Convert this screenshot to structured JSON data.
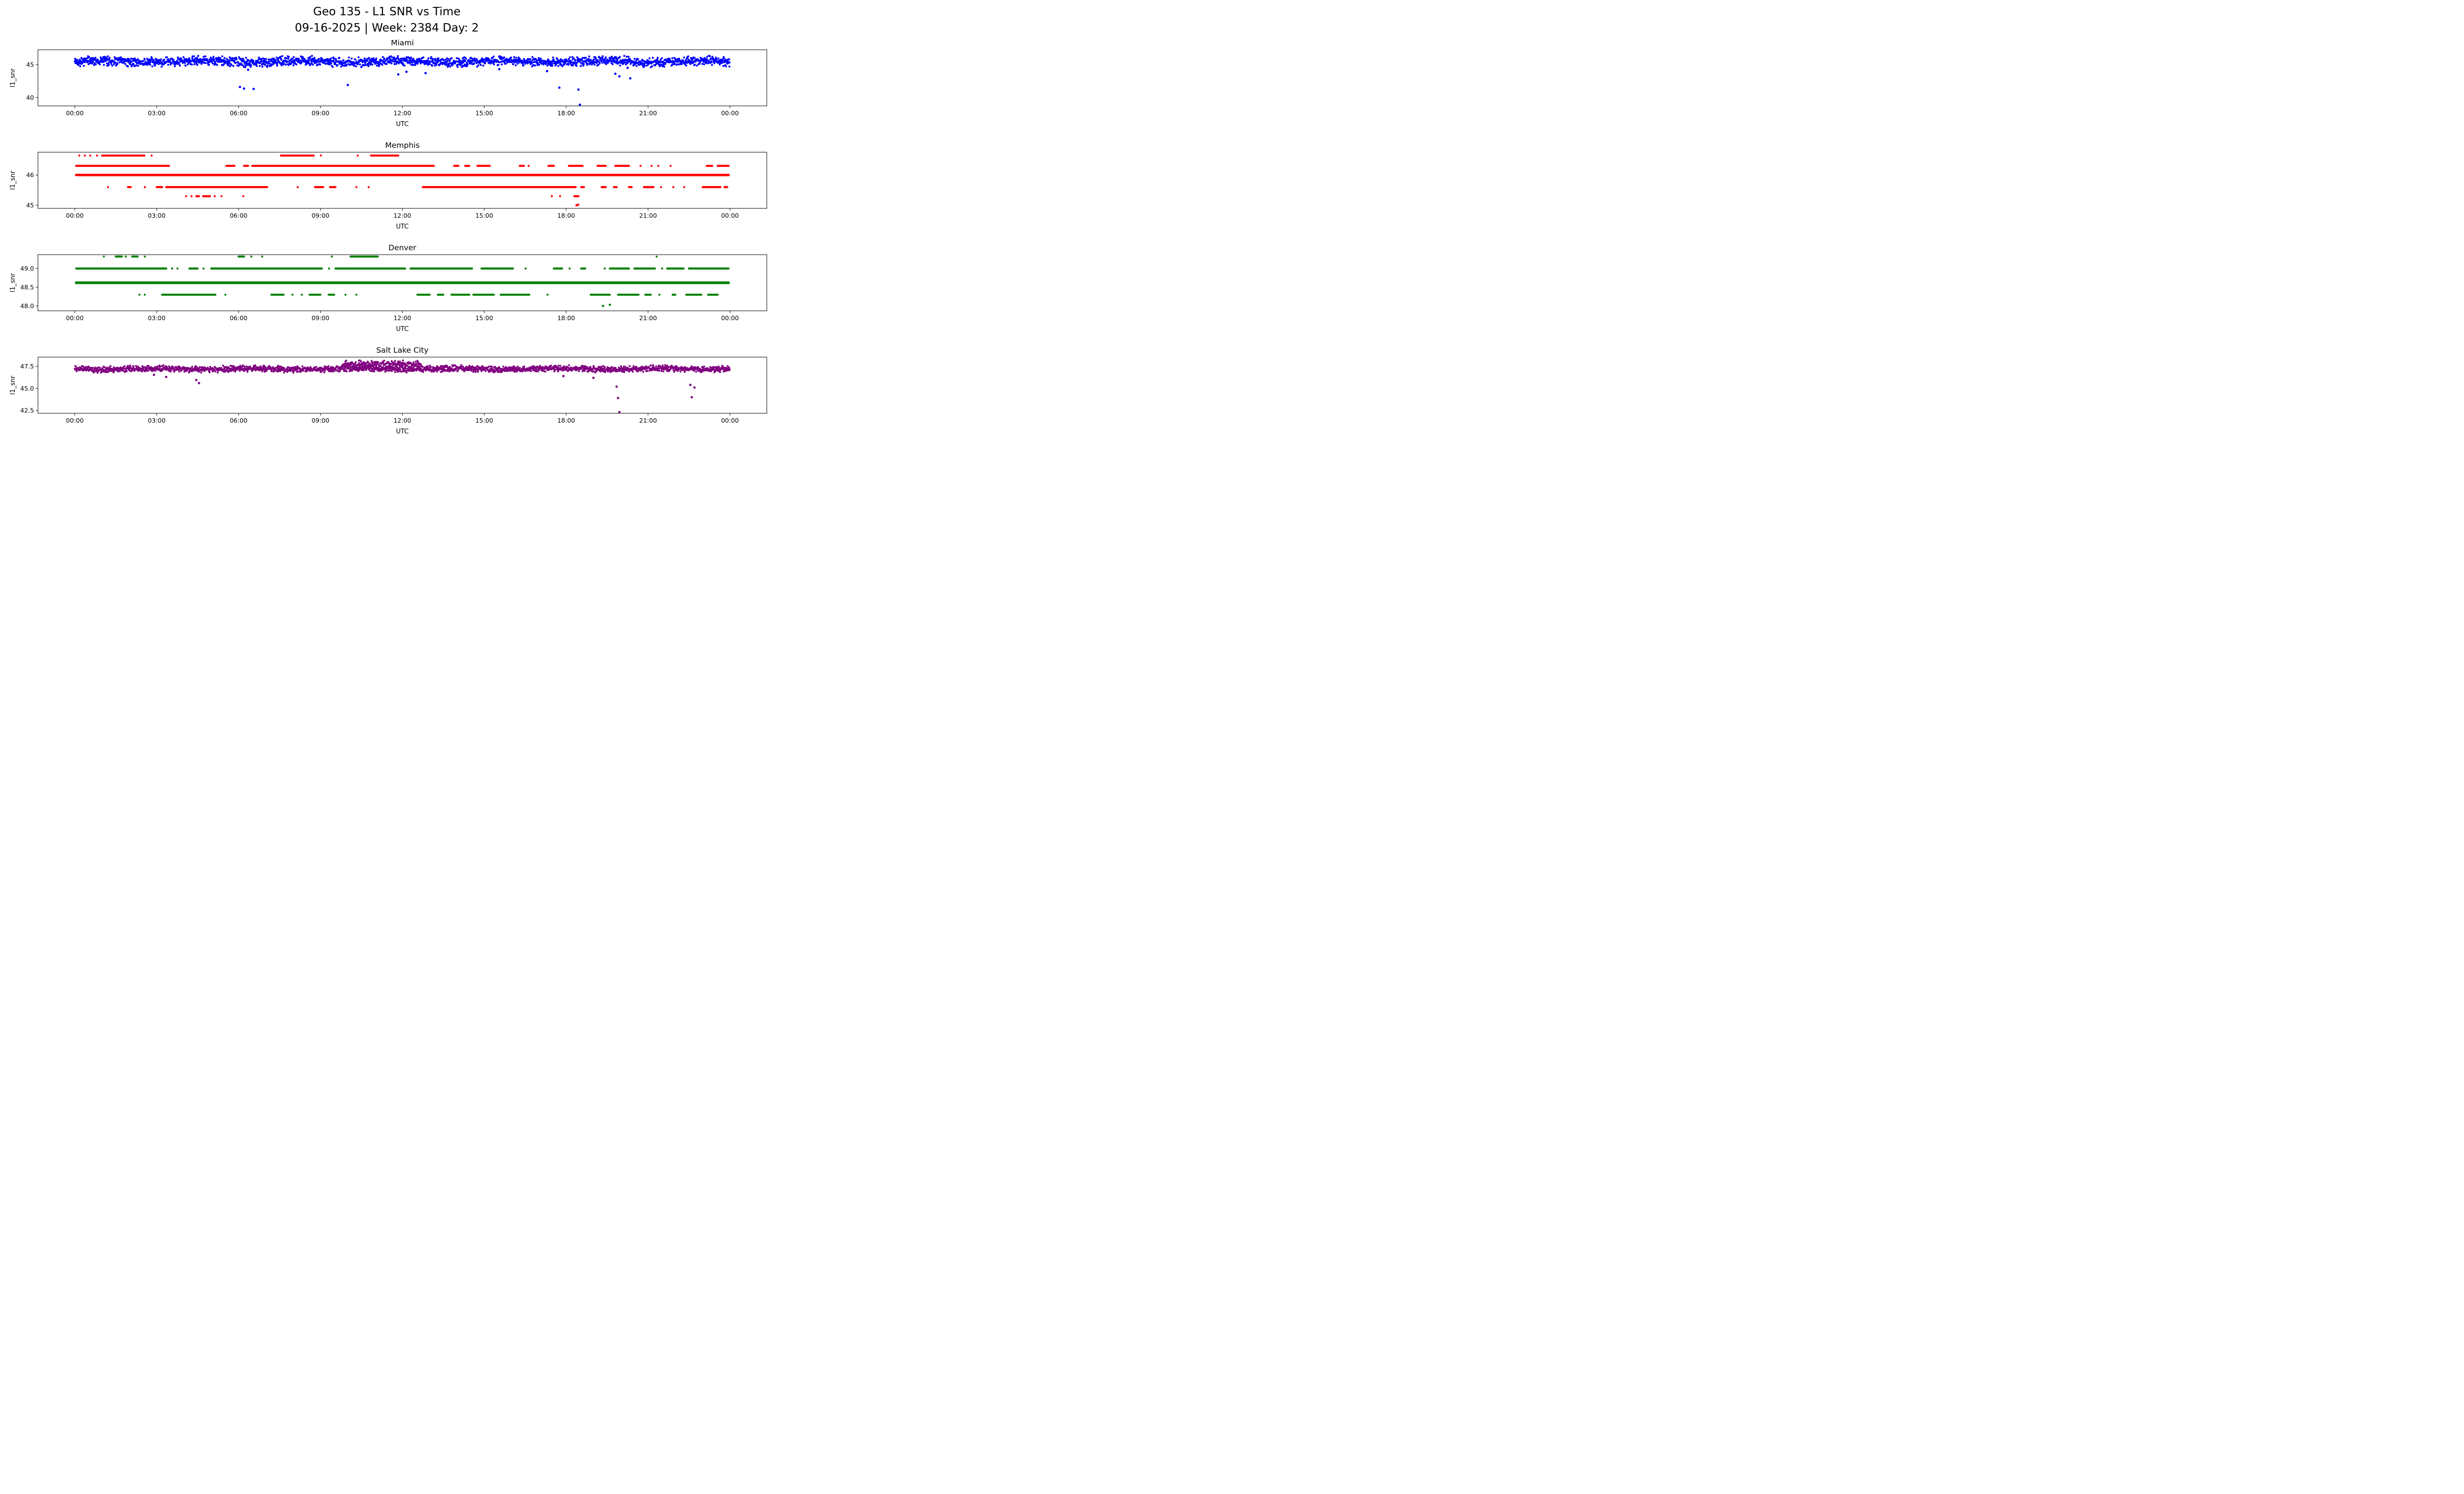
{
  "figure": {
    "title_line1": "Geo 135 - L1 SNR vs Time",
    "title_line2": "09-16-2025 | Week: 2384 Day: 2",
    "background": "#ffffff"
  },
  "chart_data": [
    {
      "type": "scatter",
      "title": "Miami",
      "xlabel": "UTC",
      "ylabel": "l1_snr",
      "color": "#0000ff",
      "legend": "none",
      "grid": false,
      "xlim": [
        -1.35,
        25.35
      ],
      "ylim": [
        38.73,
        47.24
      ],
      "xtick_values": [
        0,
        3,
        6,
        9,
        12,
        15,
        18,
        21,
        24
      ],
      "xtick_labels": [
        "00:00",
        "03:00",
        "06:00",
        "09:00",
        "12:00",
        "15:00",
        "18:00",
        "21:00",
        "00:00"
      ],
      "ytick_values": [
        40,
        45
      ],
      "ytick_labels": [
        "40",
        "45"
      ],
      "noise_bands": [
        {
          "start": 0.0,
          "end": 24.0,
          "step": 0.011,
          "center": 45.45,
          "spread": 0.82,
          "wave": 0.12
        }
      ],
      "rows": [],
      "outliers": [
        [
          6.05,
          41.6
        ],
        [
          6.2,
          41.35
        ],
        [
          6.35,
          44.2
        ],
        [
          6.55,
          41.3
        ],
        [
          10.0,
          41.9
        ],
        [
          11.85,
          43.5
        ],
        [
          12.15,
          43.9
        ],
        [
          12.85,
          43.7
        ],
        [
          15.55,
          44.3
        ],
        [
          17.3,
          44.0
        ],
        [
          17.75,
          41.5
        ],
        [
          18.45,
          41.2
        ],
        [
          18.5,
          38.9
        ],
        [
          19.8,
          43.6
        ],
        [
          19.95,
          43.2
        ],
        [
          20.25,
          44.5
        ],
        [
          20.35,
          42.9
        ]
      ]
    },
    {
      "type": "scatter",
      "title": "Memphis",
      "xlabel": "UTC",
      "ylabel": "l1_snr",
      "color": "#ff0000",
      "legend": "none",
      "grid": false,
      "xlim": [
        -1.35,
        25.35
      ],
      "ylim": [
        44.9,
        46.75
      ],
      "xtick_values": [
        0,
        3,
        6,
        9,
        12,
        15,
        18,
        21,
        24
      ],
      "xtick_labels": [
        "00:00",
        "03:00",
        "06:00",
        "09:00",
        "12:00",
        "15:00",
        "18:00",
        "21:00",
        "00:00"
      ],
      "ytick_values": [
        45,
        46
      ],
      "ytick_labels": [
        "45",
        "46"
      ],
      "noise_bands": [],
      "rows": [
        {
          "y": 46.64,
          "segments": [
            [
              0.15,
              0.18
            ],
            [
              0.35,
              0.38
            ],
            [
              0.55,
              0.58
            ],
            [
              0.8,
              0.83
            ],
            [
              1.0,
              2.55
            ],
            [
              2.8,
              2.83
            ],
            [
              7.55,
              8.75
            ],
            [
              9.0,
              9.03
            ],
            [
              10.35,
              10.38
            ],
            [
              10.85,
              11.85
            ]
          ]
        },
        {
          "y": 46.3,
          "segments": [
            [
              0.05,
              3.45
            ],
            [
              5.55,
              5.85
            ],
            [
              6.2,
              6.35
            ],
            [
              6.5,
              13.15
            ],
            [
              13.9,
              14.05
            ],
            [
              14.3,
              14.45
            ],
            [
              14.75,
              15.2
            ],
            [
              16.3,
              16.45
            ],
            [
              16.6,
              16.65
            ],
            [
              17.35,
              17.55
            ],
            [
              18.1,
              18.6
            ],
            [
              19.15,
              19.45
            ],
            [
              19.8,
              20.3
            ],
            [
              20.7,
              20.75
            ],
            [
              21.1,
              21.15
            ],
            [
              21.35,
              21.4
            ],
            [
              21.8,
              21.85
            ],
            [
              23.15,
              23.35
            ],
            [
              23.55,
              23.95
            ]
          ]
        },
        {
          "y": 46.0,
          "segments": [
            [
              0.05,
              23.95
            ]
          ],
          "lw": 5
        },
        {
          "y": 45.6,
          "segments": [
            [
              1.2,
              1.23
            ],
            [
              1.95,
              2.05
            ],
            [
              2.55,
              2.58
            ],
            [
              3.0,
              3.2
            ],
            [
              3.35,
              7.05
            ],
            [
              8.15,
              8.18
            ],
            [
              8.8,
              9.1
            ],
            [
              9.35,
              9.55
            ],
            [
              10.3,
              10.33
            ],
            [
              10.75,
              10.78
            ],
            [
              12.75,
              18.35
            ],
            [
              18.55,
              18.65
            ],
            [
              19.3,
              19.45
            ],
            [
              19.75,
              19.85
            ],
            [
              20.3,
              20.4
            ],
            [
              20.85,
              21.2
            ],
            [
              21.45,
              21.5
            ],
            [
              21.9,
              21.95
            ],
            [
              22.3,
              22.35
            ],
            [
              23.0,
              23.65
            ],
            [
              23.8,
              23.9
            ]
          ]
        },
        {
          "y": 45.3,
          "segments": [
            [
              4.05,
              4.1
            ],
            [
              4.25,
              4.3
            ],
            [
              4.45,
              4.55
            ],
            [
              4.7,
              4.95
            ],
            [
              5.1,
              5.15
            ],
            [
              5.35,
              5.4
            ],
            [
              6.15,
              6.2
            ],
            [
              17.45,
              17.5
            ],
            [
              17.75,
              17.8
            ],
            [
              18.3,
              18.45
            ]
          ]
        }
      ],
      "outliers": [
        [
          18.38,
          45.0
        ],
        [
          18.44,
          45.02
        ]
      ]
    },
    {
      "type": "scatter",
      "title": "Denver",
      "xlabel": "UTC",
      "ylabel": "l1_snr",
      "color": "#008000",
      "legend": "none",
      "grid": false,
      "xlim": [
        -1.35,
        25.35
      ],
      "ylim": [
        47.87,
        49.37
      ],
      "xtick_values": [
        0,
        3,
        6,
        9,
        12,
        15,
        18,
        21,
        24
      ],
      "xtick_labels": [
        "00:00",
        "03:00",
        "06:00",
        "09:00",
        "12:00",
        "15:00",
        "18:00",
        "21:00",
        "00:00"
      ],
      "ytick_values": [
        48.0,
        48.5,
        49.0
      ],
      "ytick_labels": [
        "48.0",
        "48.5",
        "49.0"
      ],
      "noise_bands": [],
      "rows": [
        {
          "y": 49.32,
          "segments": [
            [
              1.05,
              1.08
            ],
            [
              1.5,
              1.72
            ],
            [
              1.85,
              1.88
            ],
            [
              2.1,
              2.3
            ],
            [
              2.55,
              2.58
            ],
            [
              6.0,
              6.2
            ],
            [
              6.45,
              6.48
            ],
            [
              6.85,
              6.88
            ],
            [
              9.4,
              9.43
            ],
            [
              10.1,
              11.1
            ],
            [
              21.3,
              21.33
            ]
          ]
        },
        {
          "y": 49.0,
          "segments": [
            [
              0.05,
              3.35
            ],
            [
              3.55,
              3.58
            ],
            [
              3.75,
              3.78
            ],
            [
              4.2,
              4.5
            ],
            [
              4.7,
              4.73
            ],
            [
              5.0,
              9.05
            ],
            [
              9.3,
              9.33
            ],
            [
              9.55,
              12.1
            ],
            [
              12.3,
              14.55
            ],
            [
              14.9,
              16.05
            ],
            [
              16.5,
              16.53
            ],
            [
              17.55,
              17.85
            ],
            [
              18.1,
              18.15
            ],
            [
              18.55,
              18.7
            ],
            [
              19.4,
              19.43
            ],
            [
              19.6,
              20.3
            ],
            [
              20.5,
              21.25
            ],
            [
              21.5,
              21.53
            ],
            [
              21.7,
              22.3
            ],
            [
              22.5,
              23.95
            ]
          ]
        },
        {
          "y": 48.62,
          "segments": [
            [
              0.05,
              23.95
            ]
          ],
          "lw": 5.5
        },
        {
          "y": 48.3,
          "segments": [
            [
              2.35,
              2.38
            ],
            [
              2.55,
              2.58
            ],
            [
              3.2,
              5.15
            ],
            [
              5.5,
              5.53
            ],
            [
              7.2,
              7.65
            ],
            [
              7.95,
              8.0
            ],
            [
              8.3,
              8.33
            ],
            [
              8.6,
              9.0
            ],
            [
              9.3,
              9.5
            ],
            [
              9.9,
              9.93
            ],
            [
              10.3,
              10.33
            ],
            [
              12.55,
              13.0
            ],
            [
              13.3,
              13.5
            ],
            [
              13.8,
              14.45
            ],
            [
              14.6,
              15.35
            ],
            [
              15.6,
              16.65
            ],
            [
              17.3,
              17.33
            ],
            [
              18.9,
              19.6
            ],
            [
              19.9,
              20.65
            ],
            [
              20.9,
              21.1
            ],
            [
              21.4,
              21.43
            ],
            [
              21.9,
              22.0
            ],
            [
              22.4,
              22.95
            ],
            [
              23.2,
              23.55
            ]
          ]
        }
      ],
      "outliers": [
        [
          19.35,
          48.0
        ],
        [
          19.6,
          48.03
        ]
      ]
    },
    {
      "type": "scatter",
      "title": "Salt Lake City",
      "xlabel": "UTC",
      "ylabel": "l1_snr",
      "color": "#800080",
      "legend": "none",
      "grid": false,
      "xlim": [
        -1.35,
        25.35
      ],
      "ylim": [
        42.17,
        48.56
      ],
      "xtick_values": [
        0,
        3,
        6,
        9,
        12,
        15,
        18,
        21,
        24
      ],
      "xtick_labels": [
        "00:00",
        "03:00",
        "06:00",
        "09:00",
        "12:00",
        "15:00",
        "18:00",
        "21:00",
        "00:00"
      ],
      "ytick_values": [
        42.5,
        45.0,
        47.5
      ],
      "ytick_labels": [
        "42.5",
        "45.0",
        "47.5"
      ],
      "noise_bands": [
        {
          "start": 0.0,
          "end": 24.0,
          "step": 0.011,
          "center": 47.22,
          "spread": 0.4,
          "wave": 0.06
        },
        {
          "start": 9.8,
          "end": 12.7,
          "step": 0.016,
          "center": 47.78,
          "spread": 0.42,
          "wave": 0.0
        }
      ],
      "rows": [],
      "outliers": [
        [
          2.9,
          46.55
        ],
        [
          3.35,
          46.3
        ],
        [
          4.45,
          45.95
        ],
        [
          4.55,
          45.6
        ],
        [
          17.9,
          46.4
        ],
        [
          19.0,
          46.2
        ],
        [
          19.85,
          45.2
        ],
        [
          19.9,
          43.9
        ],
        [
          19.95,
          42.3
        ],
        [
          22.55,
          45.4
        ],
        [
          22.6,
          44.0
        ],
        [
          22.7,
          45.1
        ]
      ]
    }
  ]
}
